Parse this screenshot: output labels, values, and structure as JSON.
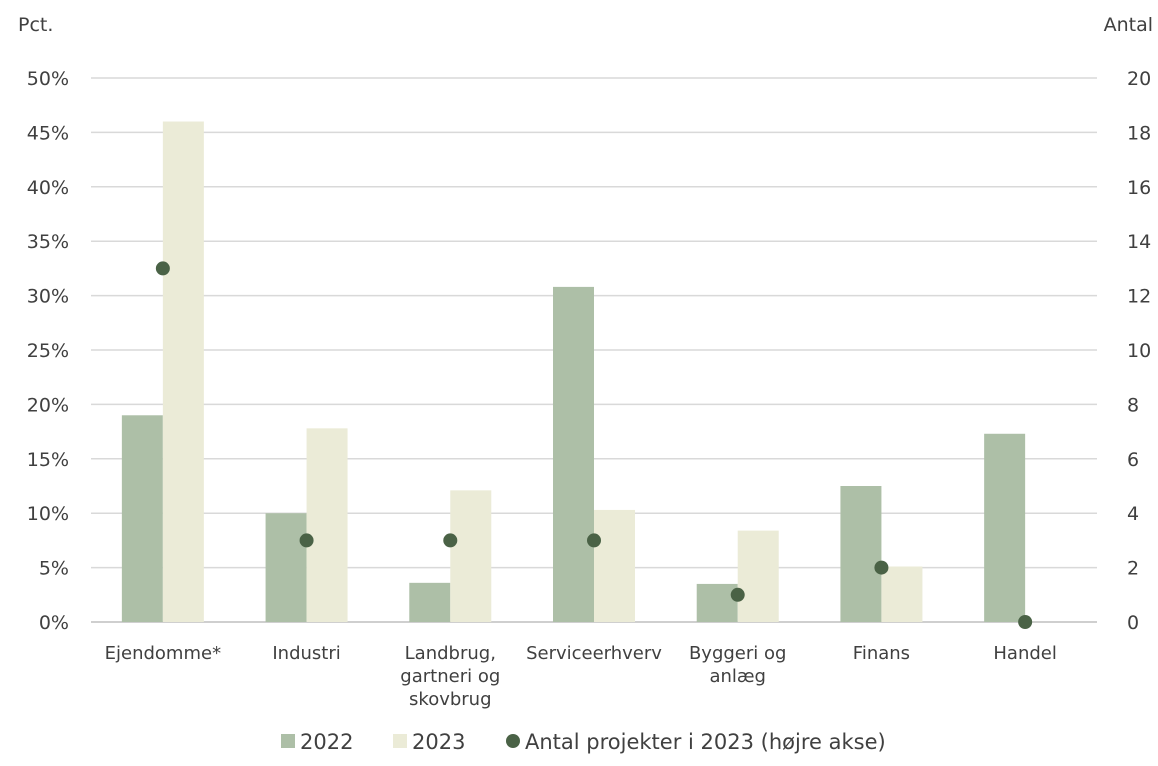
{
  "chart_data": {
    "type": "bar",
    "left_axis_title": "Pct.",
    "right_axis_title": "Antal",
    "categories": [
      [
        "Ejendomme*"
      ],
      [
        "Industri"
      ],
      [
        "Landbrug,",
        "gartneri og",
        "skovbrug"
      ],
      [
        "Serviceerhverv"
      ],
      [
        "Byggeri og",
        "anlæg"
      ],
      [
        "Finans"
      ],
      [
        "Handel"
      ]
    ],
    "series": [
      {
        "name": "2022",
        "type": "bar",
        "axis": "left",
        "color": "#adbfa7",
        "values": [
          19.0,
          10.0,
          3.6,
          30.8,
          3.5,
          12.5,
          17.3
        ]
      },
      {
        "name": "2023",
        "type": "bar",
        "axis": "left",
        "color": "#ebebd7",
        "values": [
          46.0,
          17.8,
          12.1,
          10.3,
          8.4,
          5.1,
          0
        ]
      },
      {
        "name": "Antal projekter i 2023 (højre akse)",
        "type": "scatter",
        "axis": "right",
        "color": "#4a6246",
        "values": [
          13,
          3,
          3,
          3,
          1,
          2,
          0
        ]
      }
    ],
    "y_left": {
      "min": 0,
      "max": 50,
      "step": 5,
      "ticks": [
        "0%",
        "5%",
        "10%",
        "15%",
        "20%",
        "25%",
        "30%",
        "35%",
        "40%",
        "45%",
        "50%"
      ]
    },
    "y_right": {
      "min": 0,
      "max": 20,
      "step": 2,
      "ticks": [
        "0",
        "2",
        "4",
        "6",
        "8",
        "10",
        "12",
        "14",
        "16",
        "18",
        "20"
      ]
    },
    "grid": true,
    "legend_position": "bottom"
  }
}
